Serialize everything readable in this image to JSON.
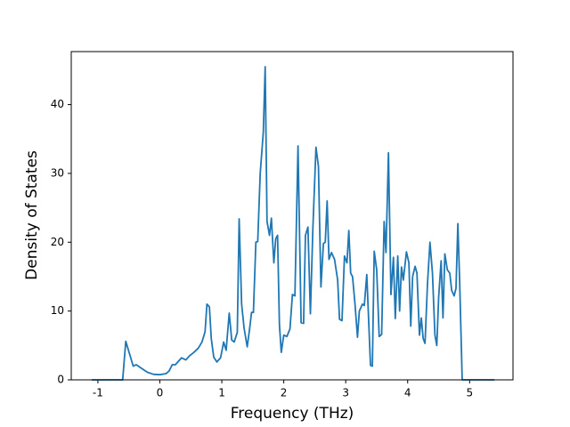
{
  "chart_data": {
    "type": "line",
    "x_label": "Frequency (THz)",
    "y_label": "Density of States",
    "xlim": [
      -1.43,
      5.7
    ],
    "ylim": [
      0,
      47.7
    ],
    "xticks": [
      -1,
      0,
      1,
      2,
      3,
      4,
      5
    ],
    "yticks": [
      0,
      10,
      20,
      30,
      40
    ],
    "grid": false,
    "series": [
      {
        "color": "#1f77b4",
        "x": [
          -1.1,
          -0.6,
          -0.55,
          -0.48,
          -0.43,
          -0.38,
          -0.3,
          -0.2,
          -0.1,
          0,
          0.1,
          0.15,
          0.2,
          0.25,
          0.3,
          0.35,
          0.42,
          0.48,
          0.55,
          0.62,
          0.68,
          0.73,
          0.76,
          0.8,
          0.83,
          0.87,
          0.92,
          0.98,
          1.03,
          1.07,
          1.12,
          1.16,
          1.2,
          1.25,
          1.28,
          1.32,
          1.36,
          1.41,
          1.45,
          1.48,
          1.51,
          1.55,
          1.58,
          1.62,
          1.67,
          1.7,
          1.73,
          1.77,
          1.8,
          1.84,
          1.87,
          1.9,
          1.93,
          1.96,
          2.0,
          2.05,
          2.1,
          2.14,
          2.18,
          2.23,
          2.28,
          2.32,
          2.35,
          2.39,
          2.43,
          2.47,
          2.52,
          2.56,
          2.6,
          2.64,
          2.67,
          2.7,
          2.73,
          2.77,
          2.82,
          2.87,
          2.9,
          2.94,
          2.98,
          3.02,
          3.05,
          3.08,
          3.11,
          3.15,
          3.19,
          3.22,
          3.27,
          3.3,
          3.34,
          3.38,
          3.4,
          3.43,
          3.46,
          3.5,
          3.54,
          3.58,
          3.62,
          3.65,
          3.69,
          3.73,
          3.77,
          3.8,
          3.84,
          3.87,
          3.9,
          3.93,
          3.98,
          4.02,
          4.05,
          4.08,
          4.12,
          4.15,
          4.19,
          4.22,
          4.25,
          4.28,
          4.32,
          4.36,
          4.4,
          4.44,
          4.47,
          4.5,
          4.54,
          4.57,
          4.6,
          4.64,
          4.68,
          4.71,
          4.75,
          4.78,
          4.81,
          4.84,
          4.88,
          5.4
        ],
        "values": [
          0,
          0,
          5.6,
          3.5,
          2.0,
          2.2,
          1.7,
          1.1,
          0.8,
          0.75,
          0.9,
          1.3,
          2.2,
          2.2,
          2.7,
          3.2,
          2.9,
          3.5,
          4.0,
          4.6,
          5.5,
          7.0,
          11.0,
          10.6,
          6.0,
          3.3,
          2.6,
          3.2,
          5.5,
          4.3,
          9.7,
          5.8,
          5.5,
          6.9,
          23.4,
          11.0,
          7.5,
          4.8,
          7.5,
          9.8,
          9.8,
          20.0,
          20.1,
          30.0,
          36.0,
          45.5,
          23.0,
          21.0,
          23.5,
          17.0,
          20.5,
          21.0,
          8.0,
          4.0,
          6.5,
          6.3,
          7.4,
          12.4,
          12.2,
          34.0,
          8.3,
          8.2,
          21.0,
          22.2,
          9.6,
          22.0,
          33.8,
          31.0,
          13.5,
          19.8,
          20.0,
          26.0,
          17.5,
          18.5,
          17.5,
          14.5,
          8.8,
          8.6,
          18.0,
          17.0,
          21.7,
          15.5,
          15.0,
          11.0,
          6.2,
          10.0,
          11.0,
          10.8,
          15.3,
          6.5,
          2.1,
          2.0,
          18.7,
          16.0,
          6.3,
          6.6,
          23.0,
          18.5,
          33.0,
          12.4,
          17.8,
          8.9,
          18.0,
          10.0,
          16.4,
          14.5,
          18.6,
          17.0,
          7.8,
          15.0,
          16.5,
          15.5,
          6.5,
          9.0,
          6.0,
          5.3,
          14.0,
          20.0,
          15.5,
          6.5,
          5.0,
          12.0,
          17.3,
          9.0,
          18.3,
          16.0,
          15.5,
          13.0,
          12.2,
          13.3,
          22.7,
          14.0,
          0,
          0
        ]
      }
    ]
  }
}
